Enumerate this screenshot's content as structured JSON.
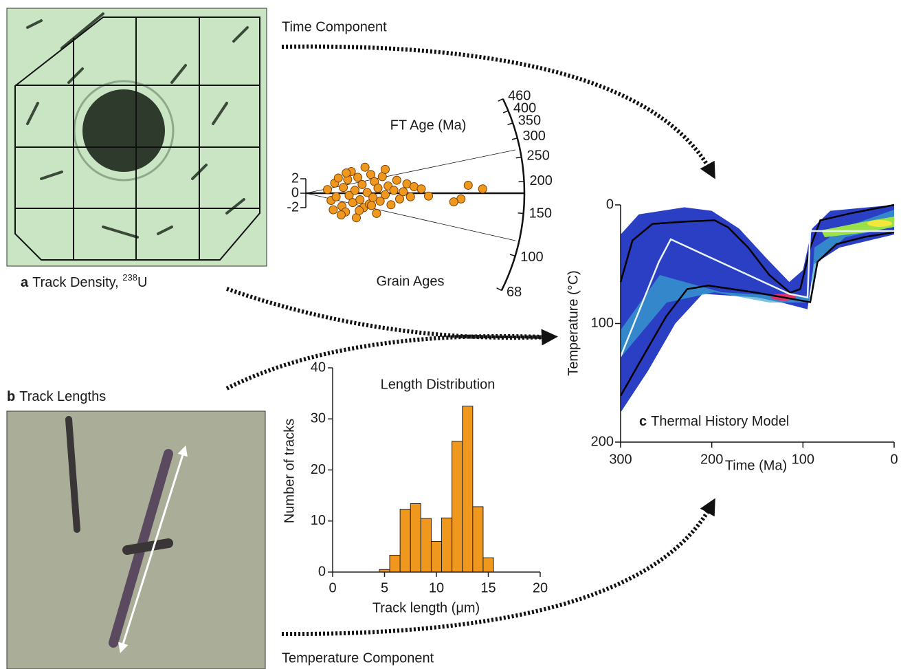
{
  "labels": {
    "time_component": "Time Component",
    "temperature_component": "Temperature Component"
  },
  "panel_a": {
    "letter": "a",
    "caption": "Track Density, ",
    "superscript": "238",
    "caption_end": "U"
  },
  "panel_b": {
    "letter": "b",
    "caption": "Track Lengths"
  },
  "chart_data": [
    {
      "type": "histogram",
      "title": "Length Distribution",
      "xlabel": "Track length (μm)",
      "ylabel": "Number of tracks",
      "color": "#f0981e",
      "bins": [
        4.5,
        5.5,
        6.5,
        7.5,
        8.5,
        9.5,
        10.5,
        11.5,
        12.5,
        13.5,
        14.5,
        15.5
      ],
      "values": [
        0.5,
        3.3,
        12.3,
        13.4,
        10.5,
        6,
        10.6,
        25.6,
        32.5,
        12.8,
        2.8
      ],
      "xlim": [
        0,
        20
      ],
      "xticks": [
        0,
        5,
        10,
        15,
        20
      ],
      "ylim": [
        0,
        40
      ],
      "yticks": [
        0,
        10,
        20,
        30,
        40
      ]
    },
    {
      "type": "radial",
      "title": "FT Age (Ma)",
      "annotation": "Grain Ages",
      "central_age": 180,
      "color": "#f0981e",
      "xlim": [
        0,
        30
      ],
      "yticks": [
        2,
        0,
        -2
      ],
      "arc_ticks": [
        68,
        100,
        150,
        200,
        250,
        300,
        350,
        400,
        460
      ],
      "x": [
        3,
        3.5,
        4,
        4.2,
        4.5,
        5,
        5.2,
        5.5,
        5.8,
        6,
        6.3,
        6.5,
        6.8,
        7,
        7.2,
        7.5,
        7.8,
        8,
        8.2,
        8.5,
        8.8,
        9,
        9.3,
        9.5,
        9.8,
        10,
        10.3,
        10.6,
        11,
        11.4,
        11.8,
        12.2,
        12.6,
        13,
        13.5,
        14,
        14.5,
        15,
        16,
        17,
        22.5,
        24.5,
        21.5,
        20.5,
        3.8,
        5.6,
        7.4,
        9.1,
        11,
        4.9
      ],
      "y": [
        0.5,
        -1,
        1.4,
        -0.5,
        2.1,
        -1.8,
        0.8,
        -2.6,
        1.9,
        -0.3,
        3,
        -1.3,
        0.4,
        -3.4,
        2.2,
        -0.9,
        1.2,
        -2,
        3.6,
        0.1,
        -1.5,
        2.6,
        -0.6,
        1.6,
        -2.8,
        0.7,
        -1.1,
        2.3,
        -0.2,
        1,
        -1.6,
        0.4,
        1.8,
        -0.8,
        0.2,
        1.3,
        -0.5,
        0.9,
        0.6,
        -0.4,
        1.1,
        0.6,
        -0.8,
        -1.2,
        -2.3,
        2.8,
        -2.4,
        -1.7,
        3.3,
        -3
      ]
    },
    {
      "type": "thermal",
      "xlabel": "Time (Ma)",
      "ylabel": "Temperature (°C)",
      "annotation_letter": "c",
      "annotation": "Thermal History Model",
      "xlim": [
        300,
        0
      ],
      "xticks": [
        300,
        200,
        100,
        0
      ],
      "ylim": [
        200,
        0
      ],
      "yticks": [
        0,
        100,
        200
      ],
      "envelope": {
        "color": "#2a3fc4",
        "x_upper": [
          300,
          280,
          230,
          200,
          170,
          140,
          115,
          100,
          90,
          70,
          0
        ],
        "upper": [
          25,
          8,
          2,
          5,
          20,
          45,
          65,
          55,
          20,
          5,
          0
        ],
        "x_lower": [
          300,
          270,
          240,
          210,
          150,
          120,
          95,
          88,
          60,
          0
        ],
        "lower": [
          175,
          140,
          100,
          75,
          78,
          83,
          88,
          50,
          36,
          25
        ]
      },
      "series": [
        {
          "color": "#000000",
          "x": [
            300,
            287,
            265,
            227,
            197,
            182,
            160,
            137,
            114,
            103,
            92,
            81,
            47,
            0
          ],
          "values": [
            65,
            30,
            16,
            14,
            13,
            19,
            36,
            59,
            74,
            71,
            36,
            13,
            7,
            0
          ]
        },
        {
          "color": "#000000",
          "x": [
            300,
            280,
            250,
            227,
            204,
            151,
            121,
            92,
            84,
            63,
            32,
            0
          ],
          "values": [
            161,
            134,
            94,
            71,
            68,
            74,
            78,
            82,
            48,
            33,
            27,
            23
          ]
        },
        {
          "color": "#e8f4f8",
          "x": [
            300,
            258,
            245,
            115,
            95,
            92,
            0
          ],
          "values": [
            128,
            48,
            29,
            75,
            78,
            22,
            22
          ]
        }
      ]
    }
  ]
}
